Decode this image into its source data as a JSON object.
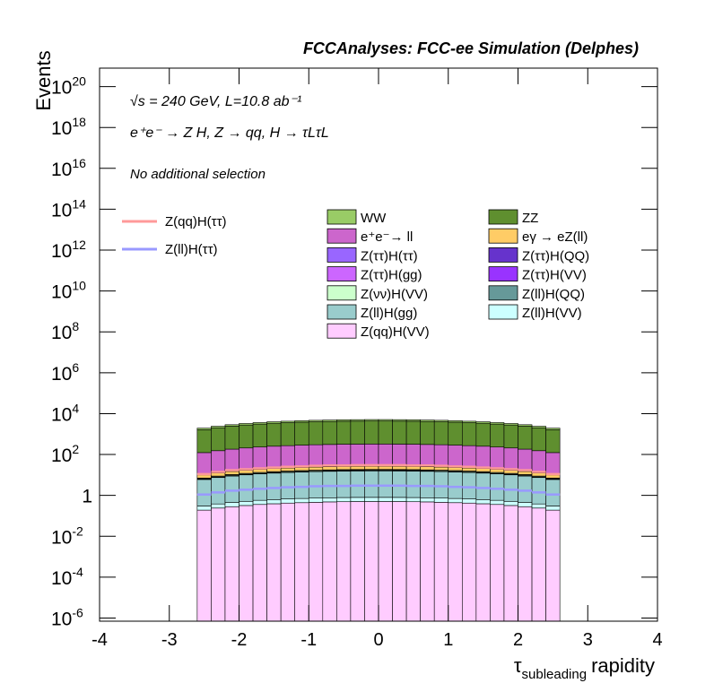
{
  "chart_data": {
    "type": "stacked_histogram",
    "title": "FCCAnalyses: FCC-ee Simulation (Delphes)",
    "annotations": [
      "√s = 240 GeV, L=10.8 ab⁻¹",
      "e⁺e⁻ → Z H, Z → qq, H → τLτL",
      "No additional selection"
    ],
    "x_label": {
      "symbol": "τ",
      "subscript": "subleading",
      "text": "rapidity"
    },
    "y_label": "Events",
    "log_y": true,
    "xlim": [
      -4,
      4
    ],
    "ylim": [
      7e-07,
      8e+20
    ],
    "xticks": [
      -4,
      -3,
      -2,
      -1,
      0,
      1,
      2,
      3,
      4
    ],
    "yticks": [
      {
        "value": 1e-06,
        "label": "10",
        "exponent": "-6"
      },
      {
        "value": 0.0001,
        "label": "10",
        "exponent": "-4"
      },
      {
        "value": 0.01,
        "label": "10",
        "exponent": "-2"
      },
      {
        "value": 1,
        "label": "1"
      },
      {
        "value": 100,
        "label": "10",
        "exponent": "2"
      },
      {
        "value": 10000,
        "label": "10",
        "exponent": "4"
      },
      {
        "value": 1000000.0,
        "label": "10",
        "exponent": "6"
      },
      {
        "value": 100000000.0,
        "label": "10",
        "exponent": "8"
      },
      {
        "value": 10000000000.0,
        "label": "10",
        "exponent": "10"
      },
      {
        "value": 1000000000000.0,
        "label": "10",
        "exponent": "12"
      },
      {
        "value": 100000000000000.0,
        "label": "10",
        "exponent": "14"
      },
      {
        "value": 1e+16,
        "label": "10",
        "exponent": "16"
      },
      {
        "value": 1e+18,
        "label": "10",
        "exponent": "18"
      },
      {
        "value": 1e+20,
        "label": "10",
        "exponent": "20"
      }
    ],
    "bins": [
      -2.6,
      -2.4,
      -2.2,
      -2.0,
      -1.8,
      -1.6,
      -1.4,
      -1.2,
      -1.0,
      -0.8,
      -0.6,
      -0.4,
      -0.2,
      0,
      0.2,
      0.4,
      0.6,
      0.8,
      1.0,
      1.2,
      1.4,
      1.6,
      1.8,
      2.0,
      2.2,
      2.4,
      2.6
    ],
    "series": [
      {
        "name": "WW",
        "color": "#99cc66",
        "values": [
          304,
          376,
          448,
          512,
          568,
          624,
          664,
          704,
          736,
          760,
          784,
          792,
          800,
          800,
          792,
          784,
          760,
          736,
          704,
          664,
          624,
          568,
          512,
          448,
          376,
          304
        ]
      },
      {
        "name": "ZZ",
        "color": "#5f8f2f",
        "values": [
          1520,
          1880,
          2240,
          2560,
          2840,
          3120,
          3320,
          3520,
          3680,
          3800,
          3920,
          3960,
          4000,
          4000,
          3960,
          3920,
          3800,
          3680,
          3520,
          3320,
          3120,
          2840,
          2560,
          2240,
          1880,
          1520
        ]
      },
      {
        "name": "e⁺e⁻→ ll",
        "color": "#cc66cc",
        "values": [
          114,
          141,
          168,
          192,
          213,
          234,
          249,
          264,
          276,
          285,
          294,
          297,
          300,
          300,
          297,
          294,
          285,
          276,
          264,
          249,
          234,
          213,
          192,
          168,
          141,
          114
        ]
      },
      {
        "name": "eγ → eZ(ll)",
        "color": "#ffcc66",
        "values": [
          3,
          3.8,
          4.5,
          5.1,
          5.7,
          6.2,
          6.6,
          7,
          7.4,
          7.6,
          7.8,
          7.9,
          8,
          8,
          7.9,
          7.8,
          7.6,
          7.4,
          7,
          6.6,
          6.2,
          5.7,
          5.1,
          4.5,
          3.8,
          3
        ]
      },
      {
        "name": "Z(ττ)H(ττ)",
        "color": "#9966ff",
        "values": [
          0.0046,
          0.0056,
          0.0067,
          0.0077,
          0.0085,
          0.0094,
          0.01,
          0.0106,
          0.011,
          0.0114,
          0.0118,
          0.0119,
          0.012,
          0.012,
          0.0119,
          0.0118,
          0.0114,
          0.011,
          0.0106,
          0.01,
          0.0094,
          0.0085,
          0.0077,
          0.0067,
          0.0056,
          0.0046
        ]
      },
      {
        "name": "Z(ττ)H(QQ)",
        "color": "#6633cc",
        "values": [
          0.114,
          0.141,
          0.168,
          0.192,
          0.213,
          0.234,
          0.249,
          0.264,
          0.276,
          0.285,
          0.294,
          0.297,
          0.3,
          0.3,
          0.297,
          0.294,
          0.285,
          0.276,
          0.264,
          0.249,
          0.234,
          0.213,
          0.192,
          0.168,
          0.141,
          0.114
        ]
      },
      {
        "name": "Z(ττ)H(gg)",
        "color": "#cc66ff",
        "values": [
          0.0076,
          0.0094,
          0.0112,
          0.0128,
          0.0142,
          0.0156,
          0.0166,
          0.0176,
          0.0184,
          0.019,
          0.0196,
          0.0198,
          0.02,
          0.02,
          0.0198,
          0.0196,
          0.019,
          0.0184,
          0.0176,
          0.0166,
          0.0156,
          0.0142,
          0.0128,
          0.0112,
          0.0094,
          0.0076
        ]
      },
      {
        "name": "Z(ττ)H(VV)",
        "color": "#9933ff",
        "values": [
          0.0019,
          0.0024,
          0.0028,
          0.0032,
          0.0036,
          0.0039,
          0.0042,
          0.0044,
          0.0046,
          0.0048,
          0.0049,
          0.005,
          0.005,
          0.005,
          0.005,
          0.0049,
          0.0048,
          0.0046,
          0.0044,
          0.0042,
          0.0039,
          0.0036,
          0.0032,
          0.0028,
          0.0024,
          0.0019
        ]
      },
      {
        "name": "Z(νν)H(VV)",
        "color": "#ccffcc",
        "values": [
          0.57,
          0.71,
          0.84,
          0.96,
          1.07,
          1.17,
          1.25,
          1.32,
          1.38,
          1.43,
          1.47,
          1.49,
          1.5,
          1.5,
          1.49,
          1.47,
          1.43,
          1.38,
          1.32,
          1.25,
          1.17,
          1.07,
          0.96,
          0.84,
          0.71,
          0.57
        ]
      },
      {
        "name": "Z(ll)H(QQ)",
        "color": "#669999",
        "values": [
          0.38,
          0.47,
          0.56,
          0.64,
          0.71,
          0.78,
          0.83,
          0.88,
          0.92,
          0.95,
          0.98,
          0.99,
          1,
          1,
          0.99,
          0.98,
          0.95,
          0.92,
          0.88,
          0.83,
          0.78,
          0.71,
          0.64,
          0.56,
          0.47,
          0.38
        ]
      },
      {
        "name": "Z(ll)H(gg)",
        "color": "#99cccc",
        "values": [
          5.7,
          7.1,
          8.4,
          9.6,
          10.7,
          11.7,
          12.5,
          13.2,
          13.8,
          14.3,
          14.7,
          14.9,
          15,
          15,
          14.9,
          14.7,
          14.3,
          13.8,
          13.2,
          12.5,
          11.7,
          10.7,
          9.6,
          8.4,
          7.1,
          5.7
        ]
      },
      {
        "name": "Z(ll)H(VV)",
        "color": "#ccffff",
        "values": [
          0.114,
          0.141,
          0.168,
          0.192,
          0.213,
          0.234,
          0.249,
          0.264,
          0.276,
          0.285,
          0.294,
          0.297,
          0.3,
          0.3,
          0.297,
          0.294,
          0.285,
          0.276,
          0.264,
          0.249,
          0.234,
          0.213,
          0.192,
          0.168,
          0.141,
          0.114
        ]
      },
      {
        "name": "Z(qq)H(VV)",
        "color": "#ffccff",
        "values": [
          0.19,
          0.24,
          0.28,
          0.32,
          0.36,
          0.39,
          0.42,
          0.44,
          0.46,
          0.48,
          0.49,
          0.5,
          0.5,
          0.5,
          0.5,
          0.49,
          0.48,
          0.46,
          0.44,
          0.42,
          0.39,
          0.36,
          0.32,
          0.28,
          0.24,
          0.19
        ]
      }
    ],
    "lines": [
      {
        "name": "Z(qq)H(ττ)",
        "color": "#ff9999",
        "values": [
          11,
          14,
          17,
          19,
          21,
          23,
          25,
          26,
          28,
          29,
          29,
          30,
          30,
          30,
          30,
          29,
          29,
          28,
          26,
          25,
          23,
          21,
          19,
          17,
          14,
          11
        ]
      },
      {
        "name": "Z(ll)H(ττ)",
        "color": "#9999ff",
        "values": [
          1.1,
          1.4,
          1.7,
          1.9,
          2.1,
          2.3,
          2.5,
          2.6,
          2.8,
          2.9,
          2.9,
          3,
          3,
          3,
          3,
          2.9,
          2.9,
          2.8,
          2.6,
          2.5,
          2.3,
          2.1,
          1.9,
          1.7,
          1.4,
          1.1
        ]
      }
    ]
  }
}
